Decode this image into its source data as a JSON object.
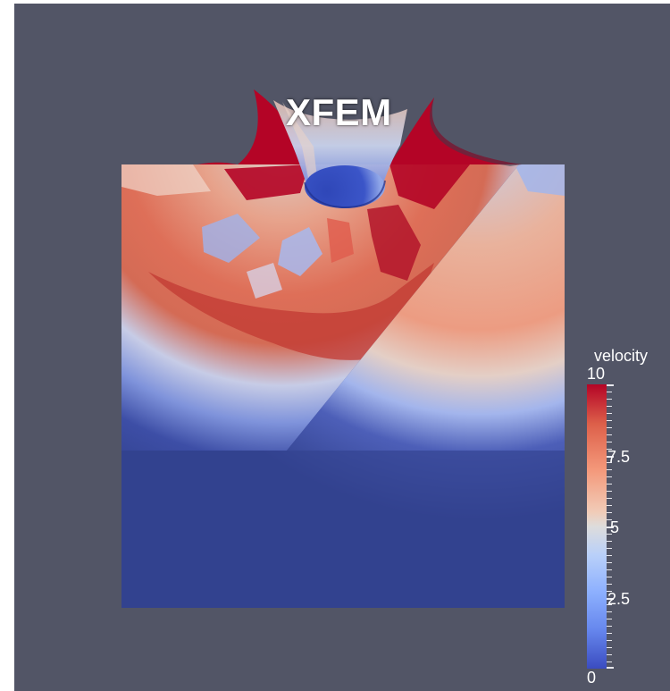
{
  "view": {
    "title": "XFEM"
  },
  "field_legend": {
    "title": "velocity",
    "min": 0,
    "max": 10,
    "labels": [
      "10",
      "7.5",
      "5",
      "2.5",
      "0"
    ],
    "colormap": [
      "#3b4cc0",
      "#6788ee",
      "#8db0fe",
      "#b9d0f9",
      "#dddcdc",
      "#f1ccb8",
      "#f4987a",
      "#dd604a",
      "#b40426"
    ]
  },
  "colors": {
    "background": "#525566",
    "block_low": "#32428f",
    "high": "#b40426"
  }
}
